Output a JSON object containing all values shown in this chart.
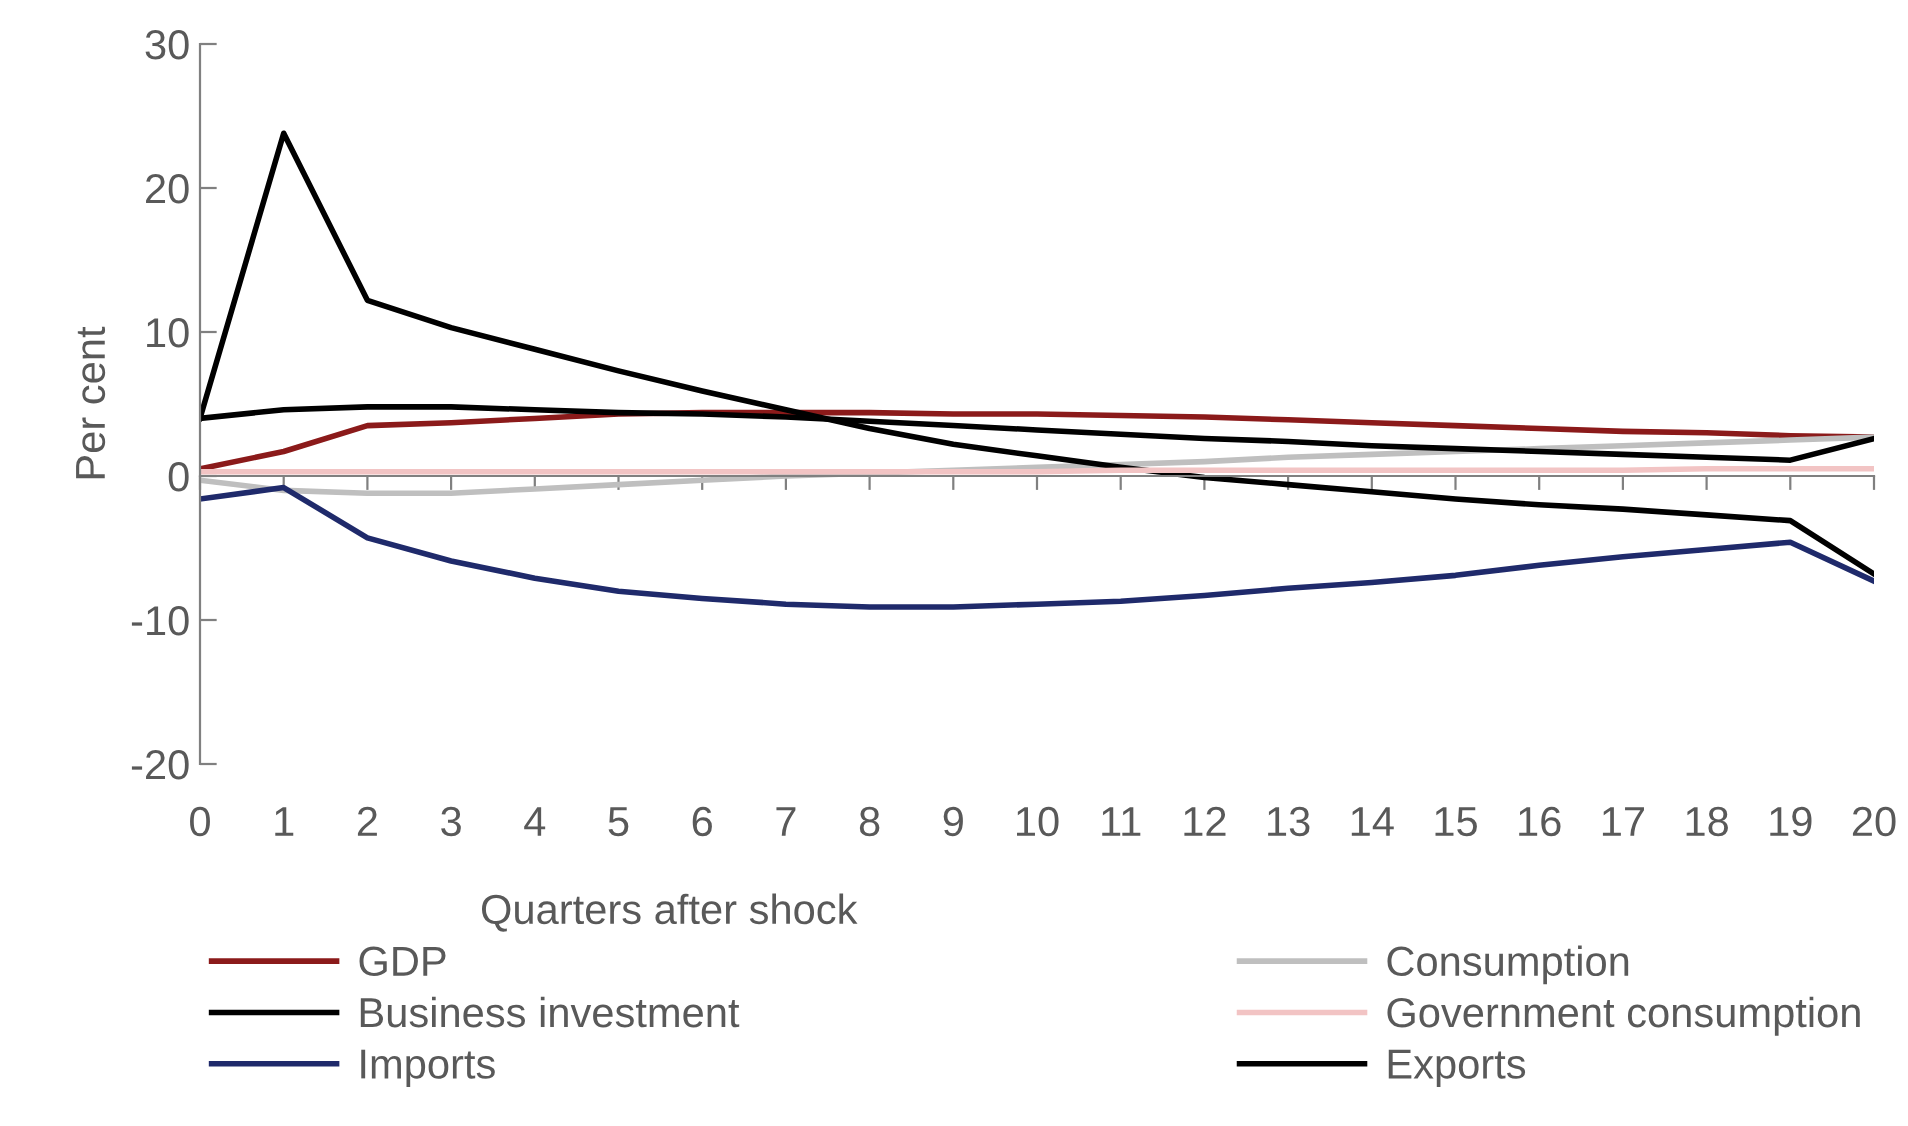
{
  "chart_data": {
    "type": "line",
    "xlabel": "Quarters after shock",
    "ylabel": "Per cent",
    "x": [
      0,
      1,
      2,
      3,
      4,
      5,
      6,
      7,
      8,
      9,
      10,
      11,
      12,
      13,
      14,
      15,
      16,
      17,
      18,
      19,
      20
    ],
    "xlim": [
      0,
      20
    ],
    "xticks": [
      0,
      1,
      2,
      3,
      4,
      5,
      6,
      7,
      8,
      9,
      10,
      11,
      12,
      13,
      14,
      15,
      16,
      17,
      18,
      19,
      20
    ],
    "ylim": [
      -20,
      30
    ],
    "yticks": [
      -20,
      -10,
      0,
      10,
      20,
      30
    ],
    "legend": "bottom",
    "marker": "none",
    "line_style": "solid",
    "series": [
      {
        "name": "GDP",
        "color": "#8b1a1a",
        "values": [
          0.5,
          1.7,
          3.5,
          3.7,
          4.0,
          4.3,
          4.4,
          4.4,
          4.4,
          4.3,
          4.3,
          4.2,
          4.1,
          3.9,
          3.7,
          3.5,
          3.3,
          3.1,
          3.0,
          2.8,
          2.7
        ]
      },
      {
        "name": "Consumption",
        "color": "#bfbfbf",
        "values": [
          -0.3,
          -1.0,
          -1.2,
          -1.2,
          -0.9,
          -0.6,
          -0.3,
          0.0,
          0.2,
          0.4,
          0.6,
          0.8,
          1.0,
          1.3,
          1.5,
          1.7,
          1.9,
          2.1,
          2.3,
          2.5,
          2.7
        ]
      },
      {
        "name": "Business investment",
        "color": "#000000",
        "values": [
          4.0,
          23.8,
          12.2,
          10.3,
          8.8,
          7.3,
          5.9,
          4.6,
          3.3,
          2.2,
          1.4,
          0.6,
          -0.1,
          -0.6,
          -1.1,
          -1.6,
          -2.0,
          -2.3,
          -2.7,
          -3.1,
          -6.8
        ]
      },
      {
        "name": "Government consumption",
        "color": "#f2c4c4",
        "values": [
          0.3,
          0.3,
          0.3,
          0.3,
          0.3,
          0.3,
          0.3,
          0.3,
          0.3,
          0.3,
          0.3,
          0.4,
          0.4,
          0.4,
          0.4,
          0.4,
          0.4,
          0.4,
          0.5,
          0.5,
          0.5
        ]
      },
      {
        "name": "Imports",
        "color": "#1f2a6b",
        "values": [
          -1.6,
          -0.8,
          -4.3,
          -5.9,
          -7.1,
          -8.0,
          -8.5,
          -8.9,
          -9.1,
          -9.1,
          -8.9,
          -8.7,
          -8.3,
          -7.8,
          -7.4,
          -6.9,
          -6.2,
          -5.6,
          -5.1,
          -4.6,
          -7.3
        ]
      },
      {
        "name": "Exports",
        "color": "#000000",
        "values": [
          4.0,
          4.6,
          4.8,
          4.8,
          4.6,
          4.4,
          4.3,
          4.1,
          3.8,
          3.5,
          3.2,
          2.9,
          2.6,
          2.4,
          2.1,
          1.9,
          1.7,
          1.5,
          1.3,
          1.1,
          2.6
        ]
      }
    ]
  }
}
